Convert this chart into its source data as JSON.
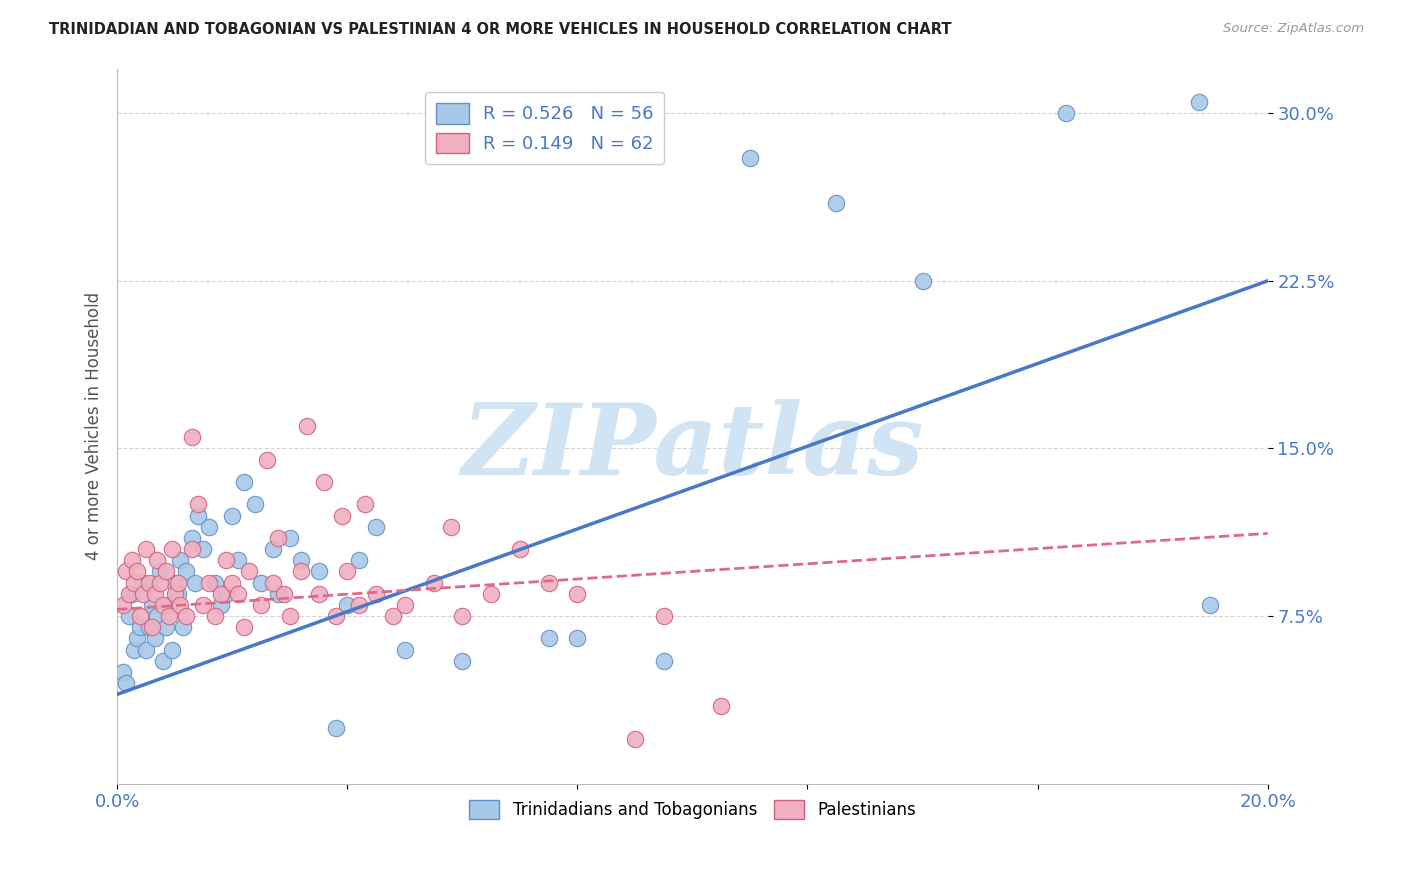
{
  "title": "TRINIDADIAN AND TOBAGONIAN VS PALESTINIAN 4 OR MORE VEHICLES IN HOUSEHOLD CORRELATION CHART",
  "source": "Source: ZipAtlas.com",
  "ylabel": "4 or more Vehicles in Household",
  "ytick_values": [
    7.5,
    15.0,
    22.5,
    30.0
  ],
  "xlim": [
    0.0,
    20.0
  ],
  "ylim": [
    0.0,
    32.0
  ],
  "blue_R": 0.526,
  "blue_N": 56,
  "pink_R": 0.149,
  "pink_N": 62,
  "blue_color": "#a8c8e8",
  "pink_color": "#f0b0c0",
  "blue_edge_color": "#6090c8",
  "pink_edge_color": "#d06080",
  "blue_line_color": "#4878c8",
  "pink_line_color": "#e06888",
  "watermark_text": "ZIPatlas",
  "watermark_color": "#d0e4f4",
  "legend_label_blue": "Trinidadians and Tobagonians",
  "legend_label_pink": "Palestinians",
  "blue_line_y0": 4.0,
  "blue_line_y1": 22.5,
  "pink_line_y0": 7.8,
  "pink_line_y1": 11.2,
  "background_color": "#ffffff",
  "grid_color": "#d0d0d0",
  "blue_scatter_x": [
    0.1,
    0.15,
    0.2,
    0.25,
    0.3,
    0.35,
    0.4,
    0.45,
    0.5,
    0.55,
    0.6,
    0.65,
    0.7,
    0.75,
    0.8,
    0.85,
    0.9,
    0.95,
    1.0,
    1.05,
    1.1,
    1.15,
    1.2,
    1.3,
    1.35,
    1.4,
    1.5,
    1.6,
    1.7,
    1.8,
    1.9,
    2.0,
    2.1,
    2.2,
    2.4,
    2.5,
    2.7,
    2.8,
    3.0,
    3.2,
    3.5,
    3.8,
    4.0,
    4.2,
    4.5,
    5.0,
    6.0,
    7.5,
    8.0,
    9.5,
    11.0,
    12.5,
    14.0,
    16.5,
    18.8,
    19.0
  ],
  "blue_scatter_y": [
    5.0,
    4.5,
    7.5,
    8.5,
    6.0,
    6.5,
    7.0,
    9.0,
    6.0,
    7.0,
    8.0,
    6.5,
    7.5,
    9.5,
    5.5,
    7.0,
    8.0,
    6.0,
    9.0,
    8.5,
    10.0,
    7.0,
    9.5,
    11.0,
    9.0,
    12.0,
    10.5,
    11.5,
    9.0,
    8.0,
    8.5,
    12.0,
    10.0,
    13.5,
    12.5,
    9.0,
    10.5,
    8.5,
    11.0,
    10.0,
    9.5,
    2.5,
    8.0,
    10.0,
    11.5,
    6.0,
    5.5,
    6.5,
    6.5,
    5.5,
    28.0,
    26.0,
    22.5,
    30.0,
    30.5,
    8.0
  ],
  "pink_scatter_x": [
    0.1,
    0.15,
    0.2,
    0.25,
    0.3,
    0.35,
    0.4,
    0.45,
    0.5,
    0.55,
    0.6,
    0.65,
    0.7,
    0.75,
    0.8,
    0.85,
    0.9,
    0.95,
    1.0,
    1.05,
    1.1,
    1.2,
    1.3,
    1.4,
    1.5,
    1.6,
    1.7,
    1.8,
    1.9,
    2.0,
    2.1,
    2.2,
    2.3,
    2.5,
    2.7,
    2.9,
    3.0,
    3.2,
    3.5,
    3.8,
    4.0,
    4.2,
    4.5,
    4.8,
    5.0,
    5.5,
    6.0,
    6.5,
    7.0,
    7.5,
    8.0,
    9.0,
    9.5,
    10.5,
    3.3,
    1.3,
    2.6,
    3.6,
    4.3,
    5.8,
    2.8,
    3.9
  ],
  "pink_scatter_y": [
    8.0,
    9.5,
    8.5,
    10.0,
    9.0,
    9.5,
    7.5,
    8.5,
    10.5,
    9.0,
    7.0,
    8.5,
    10.0,
    9.0,
    8.0,
    9.5,
    7.5,
    10.5,
    8.5,
    9.0,
    8.0,
    7.5,
    10.5,
    12.5,
    8.0,
    9.0,
    7.5,
    8.5,
    10.0,
    9.0,
    8.5,
    7.0,
    9.5,
    8.0,
    9.0,
    8.5,
    7.5,
    9.5,
    8.5,
    7.5,
    9.5,
    8.0,
    8.5,
    7.5,
    8.0,
    9.0,
    7.5,
    8.5,
    10.5,
    9.0,
    8.5,
    2.0,
    7.5,
    3.5,
    16.0,
    15.5,
    14.5,
    13.5,
    12.5,
    11.5,
    11.0,
    12.0
  ]
}
